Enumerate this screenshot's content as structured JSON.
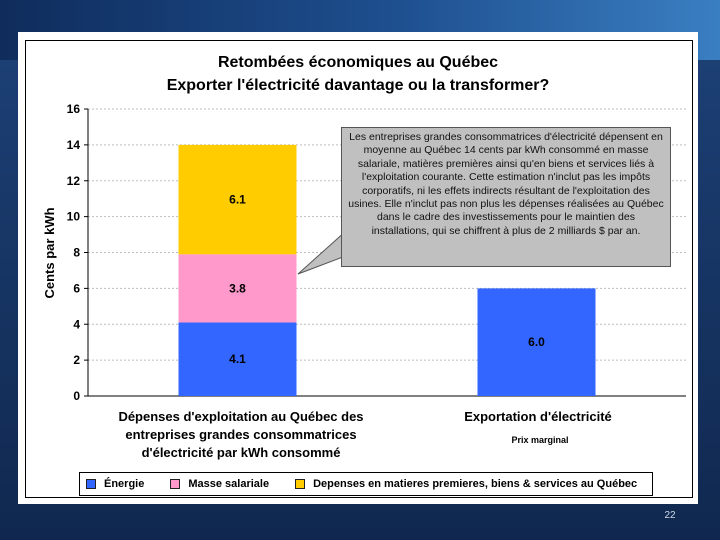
{
  "slide": {
    "page_number": "22"
  },
  "chart_data": {
    "type": "bar",
    "stacked": true,
    "title": "Retombées économiques au Québec",
    "subtitle": "Exporter l'électricité davantage ou la transformer?",
    "ylabel": "Cents par kWh",
    "ylim": [
      0,
      16
    ],
    "yticks": [
      0,
      2,
      4,
      6,
      8,
      10,
      12,
      14,
      16
    ],
    "grid": true,
    "legend_position": "bottom",
    "categories": [
      "Dépenses d'exploitation au Québec des entreprises grandes consommatrices d'électricité par kWh consommé",
      "Exportation d'électricité"
    ],
    "category_lines": [
      [
        "Dépenses d'exploitation au Québec des",
        "entreprises grandes consommatrices",
        "d'électricité par kWh consommé"
      ],
      [
        "Exportation d'électricité"
      ]
    ],
    "category_note": "Prix marginal",
    "series": [
      {
        "name": "Énergie",
        "color": "#3366ff",
        "values": [
          4.1,
          6.0
        ],
        "labels": [
          "4.1",
          "6.0"
        ]
      },
      {
        "name": "Masse salariale",
        "color": "#ff99cc",
        "values": [
          3.8,
          0
        ],
        "labels": [
          "3.8",
          ""
        ]
      },
      {
        "name": "Depenses en matieres premieres, biens & services au Québec",
        "color": "#ffcc00",
        "values": [
          6.1,
          0
        ],
        "labels": [
          "6.1",
          ""
        ]
      }
    ],
    "callout": {
      "text": "Les entreprises grandes consommatrices d'électricité dépensent en moyenne au Québec 14 cents par kWh consommé en masse salariale, matières premières ainsi qu'en biens et services liés à l'exploitation courante. Cette estimation n'inclut pas les impôts corporatifs, ni les effets indirects résultant de l'exploitation des usines. Elle n'inclut pas non plus les dépenses réalisées au Québec dans le cadre des investissements pour le maintien des installations, qui se chiffrent à plus de 2 milliards $ par an."
    }
  }
}
